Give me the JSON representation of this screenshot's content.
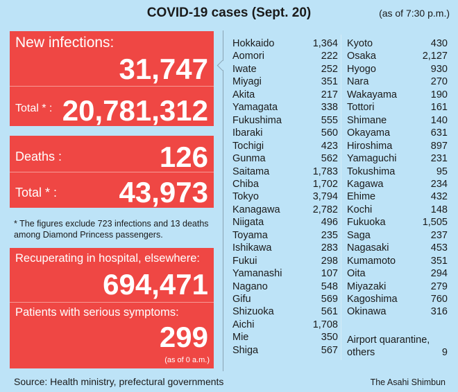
{
  "header": {
    "title": "COVID-19 cases (Sept. 20)",
    "as_of": "(as of 7:30 p.m.)"
  },
  "infections": {
    "new_label": "New infections:",
    "new_value": "31,747",
    "total_label": "Total * :",
    "total_value": "20,781,312"
  },
  "deaths": {
    "label": "Deaths :",
    "value": "126",
    "total_label": "Total * :",
    "total_value": "43,973"
  },
  "footnote": "* The figures exclude 723 infections and 13 deaths among Diamond Princess passengers.",
  "hospital": {
    "label": "Recuperating in hospital, elsewhere:",
    "value": "694,471",
    "serious_label": "Patients with serious symptoms:",
    "serious_value": "299",
    "serious_as_of": "(as of 0 a.m.)"
  },
  "prefectures_left": [
    {
      "name": "Hokkaido",
      "value": "1,364"
    },
    {
      "name": "Aomori",
      "value": "222"
    },
    {
      "name": "Iwate",
      "value": "252"
    },
    {
      "name": "Miyagi",
      "value": "351"
    },
    {
      "name": "Akita",
      "value": "217"
    },
    {
      "name": "Yamagata",
      "value": "338"
    },
    {
      "name": "Fukushima",
      "value": "555"
    },
    {
      "name": "Ibaraki",
      "value": "560"
    },
    {
      "name": "Tochigi",
      "value": "423"
    },
    {
      "name": "Gunma",
      "value": "562"
    },
    {
      "name": "Saitama",
      "value": "1,783"
    },
    {
      "name": "Chiba",
      "value": "1,702"
    },
    {
      "name": "Tokyo",
      "value": "3,794"
    },
    {
      "name": "Kanagawa",
      "value": "2,782"
    },
    {
      "name": "Niigata",
      "value": "496"
    },
    {
      "name": "Toyama",
      "value": "235"
    },
    {
      "name": "Ishikawa",
      "value": "283"
    },
    {
      "name": "Fukui",
      "value": "298"
    },
    {
      "name": "Yamanashi",
      "value": "107"
    },
    {
      "name": "Nagano",
      "value": "548"
    },
    {
      "name": "Gifu",
      "value": "569"
    },
    {
      "name": "Shizuoka",
      "value": "561"
    },
    {
      "name": "Aichi",
      "value": "1,708"
    },
    {
      "name": "Mie",
      "value": "350"
    },
    {
      "name": "Shiga",
      "value": "567"
    }
  ],
  "prefectures_right": [
    {
      "name": "Kyoto",
      "value": "430"
    },
    {
      "name": "Osaka",
      "value": "2,127"
    },
    {
      "name": "Hyogo",
      "value": "930"
    },
    {
      "name": "Nara",
      "value": "270"
    },
    {
      "name": "Wakayama",
      "value": "190"
    },
    {
      "name": "Tottori",
      "value": "161"
    },
    {
      "name": "Shimane",
      "value": "140"
    },
    {
      "name": "Okayama",
      "value": "631"
    },
    {
      "name": "Hiroshima",
      "value": "897"
    },
    {
      "name": "Yamaguchi",
      "value": "231"
    },
    {
      "name": "Tokushima",
      "value": "95"
    },
    {
      "name": "Kagawa",
      "value": "234"
    },
    {
      "name": "Ehime",
      "value": "432"
    },
    {
      "name": "Kochi",
      "value": "148"
    },
    {
      "name": "Fukuoka",
      "value": "1,505"
    },
    {
      "name": "Saga",
      "value": "237"
    },
    {
      "name": "Nagasaki",
      "value": "453"
    },
    {
      "name": "Kumamoto",
      "value": "351"
    },
    {
      "name": "Oita",
      "value": "294"
    },
    {
      "name": "Miyazaki",
      "value": "279"
    },
    {
      "name": "Kagoshima",
      "value": "760"
    },
    {
      "name": "Okinawa",
      "value": "316"
    }
  ],
  "airport": {
    "label_line1": "Airport quarantine,",
    "label_line2": "others",
    "value": "9"
  },
  "footer": {
    "source": "Source: Health ministry, prefectural governments",
    "brand": "The Asahi Shimbun"
  },
  "colors": {
    "background": "#bde3f7",
    "panel_red": "#ef4744"
  }
}
